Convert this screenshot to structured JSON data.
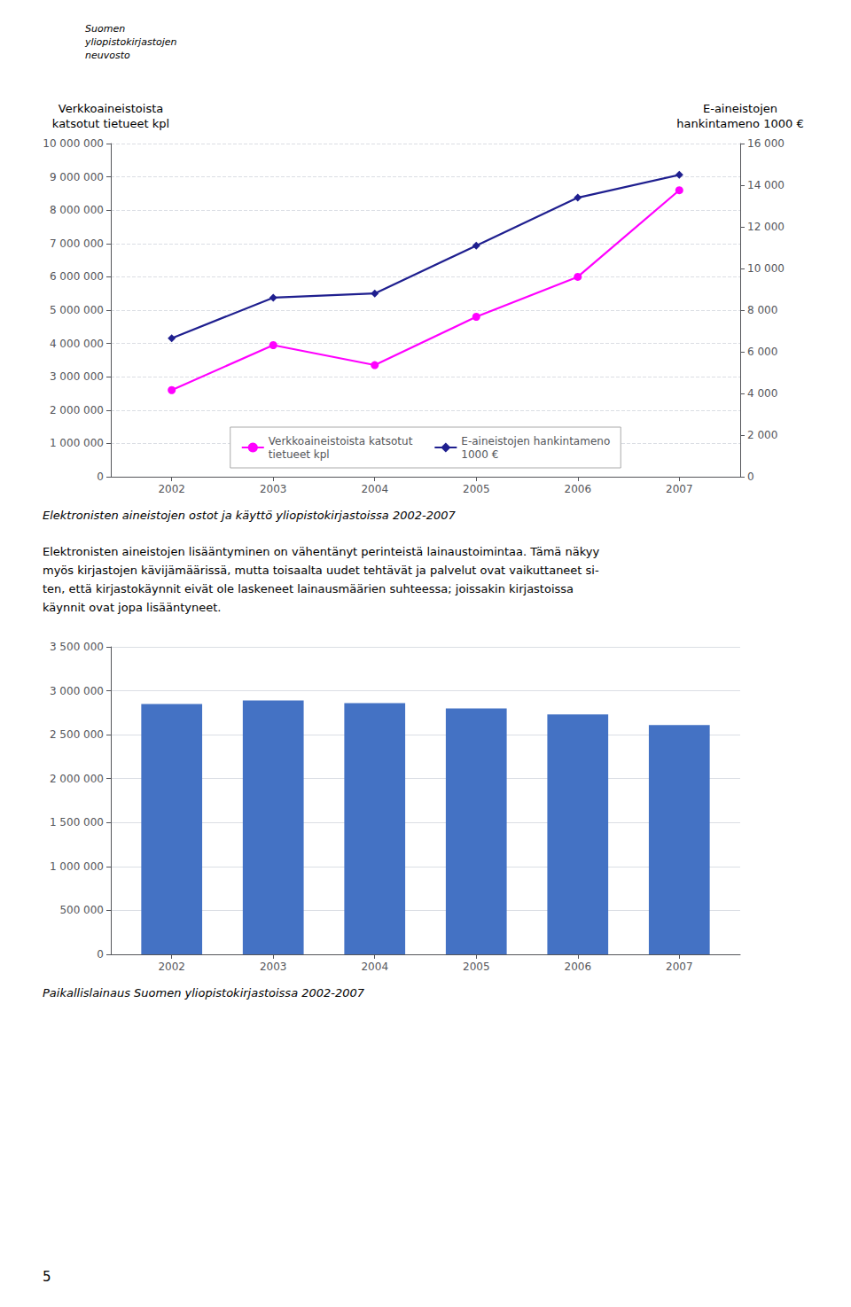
{
  "chart_data": [
    {
      "type": "line",
      "title": "Elektronisten aineistojen ostot ja käyttö yliopistokirjastoissa 2002-2007",
      "x": [
        2002,
        2003,
        2004,
        2005,
        2006,
        2007
      ],
      "xlim": [
        2001.4,
        2007.6
      ],
      "xticks": [
        2002,
        2003,
        2004,
        2005,
        2006,
        2007
      ],
      "ylabel": "Verkkoaineistoista\nkatsotut tietueet kpl",
      "y2label": "E-aineistojen\nhankintameno 1000 €",
      "ylim": [
        0,
        10000000
      ],
      "yticks": [
        0,
        {
          "value": 1000000,
          "label": "1 000 000"
        },
        {
          "value": 2000000,
          "label": "2 000 000"
        },
        {
          "value": 3000000,
          "label": "3 000 000"
        },
        {
          "value": 4000000,
          "label": "4 000 000"
        },
        {
          "value": 5000000,
          "label": "5 000 000"
        },
        {
          "value": 6000000,
          "label": "6 000 000"
        },
        {
          "value": 7000000,
          "label": "7 000 000"
        },
        {
          "value": 8000000,
          "label": "8 000 000"
        },
        {
          "value": 9000000,
          "label": "9 000 000"
        },
        {
          "value": 10000000,
          "label": "10 000 000"
        }
      ],
      "y2lim": [
        0,
        16000
      ],
      "y2ticks": [
        0,
        {
          "value": 2000,
          "label": "2 000"
        },
        {
          "value": 4000,
          "label": "4 000"
        },
        {
          "value": 6000,
          "label": "6 000"
        },
        {
          "value": 8000,
          "label": "8 000"
        },
        {
          "value": 10000,
          "label": "10 000"
        },
        {
          "value": 12000,
          "label": "12 000"
        },
        {
          "value": 14000,
          "label": "14 000"
        },
        {
          "value": 16000,
          "label": "16 000"
        }
      ],
      "grid": true,
      "legend": "lower center",
      "series": [
        {
          "name": "Verkkoaineistoista katsotut\ntietueet kpl",
          "color": "#ff00ff",
          "marker": "circle",
          "values": [
            2600000,
            3950000,
            3350000,
            4800000,
            6000000,
            8600000
          ]
        },
        {
          "name": "E-aineistojen hankintameno\n1000 €",
          "color": "#1f1f8f",
          "marker": "diamond",
          "axis": "y2",
          "values": [
            6650,
            8600,
            8800,
            11100,
            13400,
            14500
          ]
        }
      ],
      "annotations": [
        "Suomen\nyliopistokirjastojen\nneuvosto",
        "Elektronisten aineistojen lisääntyminen on vähentänyt perinteistä lainaustoimintaa. Tämä näkyy\nmyös kirjastojen kävijämäärissä, mutta toisaalta uudet tehtävät ja palvelut ovat vaikuttaneet si-\nten, että kirjastokäynnit eivät ole laskeneet lainausmäärien suhteessa; joissakin kirjastoissa\nkäynnit ovat jopa lisääntyneet.",
        "5"
      ]
    },
    {
      "type": "bar",
      "title": "Paikallislainaus Suomen yliopistokirjastoissa 2002-2007",
      "x": [
        2002,
        2003,
        2004,
        2005,
        2006,
        2007
      ],
      "xlim": [
        2001.4,
        2007.6
      ],
      "xticks": [
        2002,
        2003,
        2004,
        2005,
        2006,
        2007
      ],
      "values": [
        2850000,
        2890000,
        2860000,
        2800000,
        2730000,
        2610000
      ],
      "color": "#4472c4",
      "ylim": [
        0,
        3500000
      ],
      "yticks": [
        0,
        {
          "value": 500000,
          "label": "500 000"
        },
        {
          "value": 1000000,
          "label": "1 000 000"
        },
        {
          "value": 1500000,
          "label": "1 500 000"
        },
        {
          "value": 2000000,
          "label": "2 000 000"
        },
        {
          "value": 2500000,
          "label": "2 500 000"
        },
        {
          "value": 3000000,
          "label": "3 000 000"
        },
        {
          "value": 3500000,
          "label": "3 500 000"
        }
      ],
      "grid": true
    }
  ]
}
